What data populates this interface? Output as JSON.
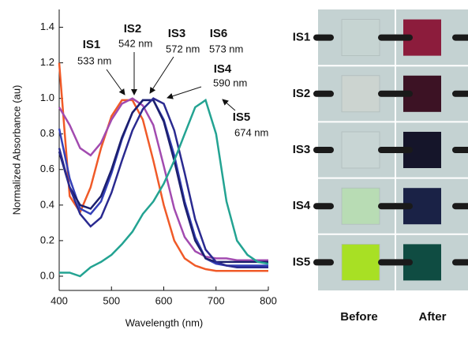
{
  "chart_data": {
    "type": "line",
    "x_label": "Wavelength (nm)",
    "y_label": "Normalized Absorbance (au)",
    "x": [
      400,
      420,
      440,
      460,
      480,
      500,
      520,
      540,
      560,
      580,
      600,
      620,
      640,
      660,
      680,
      700,
      720,
      740,
      760,
      780,
      800
    ],
    "xlim": [
      400,
      800
    ],
    "xticks": [
      400,
      500,
      600,
      700,
      800
    ],
    "ylim": [
      -0.08,
      1.5
    ],
    "yticks": [
      {
        "value": 0,
        "label": "0.0"
      },
      0.2,
      0.4,
      0.6,
      0.8,
      {
        "value": 1,
        "label": "1.0"
      },
      1.2,
      1.4
    ],
    "series": [
      {
        "name": "IS1",
        "color": "#f05a28",
        "values": [
          1.2,
          0.45,
          0.36,
          0.5,
          0.72,
          0.9,
          0.99,
          0.99,
          0.88,
          0.65,
          0.4,
          0.2,
          0.1,
          0.06,
          0.04,
          0.03,
          0.03,
          0.03,
          0.03,
          0.03,
          0.03
        ]
      },
      {
        "name": "IS2",
        "color": "#a24bb0",
        "values": [
          0.95,
          0.85,
          0.72,
          0.68,
          0.75,
          0.88,
          0.97,
          1.0,
          0.96,
          0.85,
          0.62,
          0.38,
          0.22,
          0.14,
          0.11,
          0.1,
          0.1,
          0.09,
          0.09,
          0.09,
          0.09
        ]
      },
      {
        "name": "IS3",
        "color": "#3440b8",
        "values": [
          0.83,
          0.55,
          0.38,
          0.35,
          0.42,
          0.58,
          0.77,
          0.92,
          0.99,
          0.99,
          0.88,
          0.68,
          0.42,
          0.22,
          0.1,
          0.07,
          0.06,
          0.06,
          0.06,
          0.06,
          0.06
        ]
      },
      {
        "name": "IS6",
        "color": "#1c1f6e",
        "values": [
          0.7,
          0.5,
          0.4,
          0.38,
          0.45,
          0.6,
          0.78,
          0.92,
          0.99,
          0.99,
          0.87,
          0.65,
          0.4,
          0.2,
          0.1,
          0.08,
          0.08,
          0.08,
          0.08,
          0.08,
          0.08
        ]
      },
      {
        "name": "IS4",
        "color": "#2a2a90",
        "values": [
          0.72,
          0.5,
          0.35,
          0.28,
          0.33,
          0.47,
          0.65,
          0.82,
          0.94,
          1.0,
          0.97,
          0.82,
          0.58,
          0.32,
          0.15,
          0.08,
          0.06,
          0.05,
          0.05,
          0.05,
          0.05
        ]
      },
      {
        "name": "IS5",
        "color": "#23a392",
        "values": [
          0.02,
          0.02,
          0.0,
          0.05,
          0.08,
          0.12,
          0.18,
          0.25,
          0.35,
          0.42,
          0.52,
          0.65,
          0.8,
          0.95,
          0.99,
          0.8,
          0.42,
          0.2,
          0.12,
          0.08,
          0.07
        ]
      }
    ],
    "annotations": [
      {
        "label": "IS1",
        "text": "533 nm"
      },
      {
        "label": "IS2",
        "text": "542 nm"
      },
      {
        "label": "IS3",
        "text": "572 nm"
      },
      {
        "label": "IS6",
        "text": "573 nm"
      },
      {
        "label": "IS4",
        "text": "590 nm"
      },
      {
        "label": "IS5",
        "text": "674 nm"
      }
    ]
  },
  "photo_panel": {
    "columns": [
      "Before",
      "After"
    ],
    "rows": [
      {
        "label": "IS1",
        "before_color": "#c6d4d2",
        "after_color": "#8c1c3c"
      },
      {
        "label": "IS2",
        "before_color": "#ccd4d0",
        "after_color": "#3c1224"
      },
      {
        "label": "IS3",
        "before_color": "#c8d5d4",
        "after_color": "#15152a"
      },
      {
        "label": "IS4",
        "before_color": "#b8dcb4",
        "after_color": "#1a2246"
      },
      {
        "label": "IS5",
        "before_color": "#a8e024",
        "after_color": "#0f4c42"
      }
    ]
  }
}
